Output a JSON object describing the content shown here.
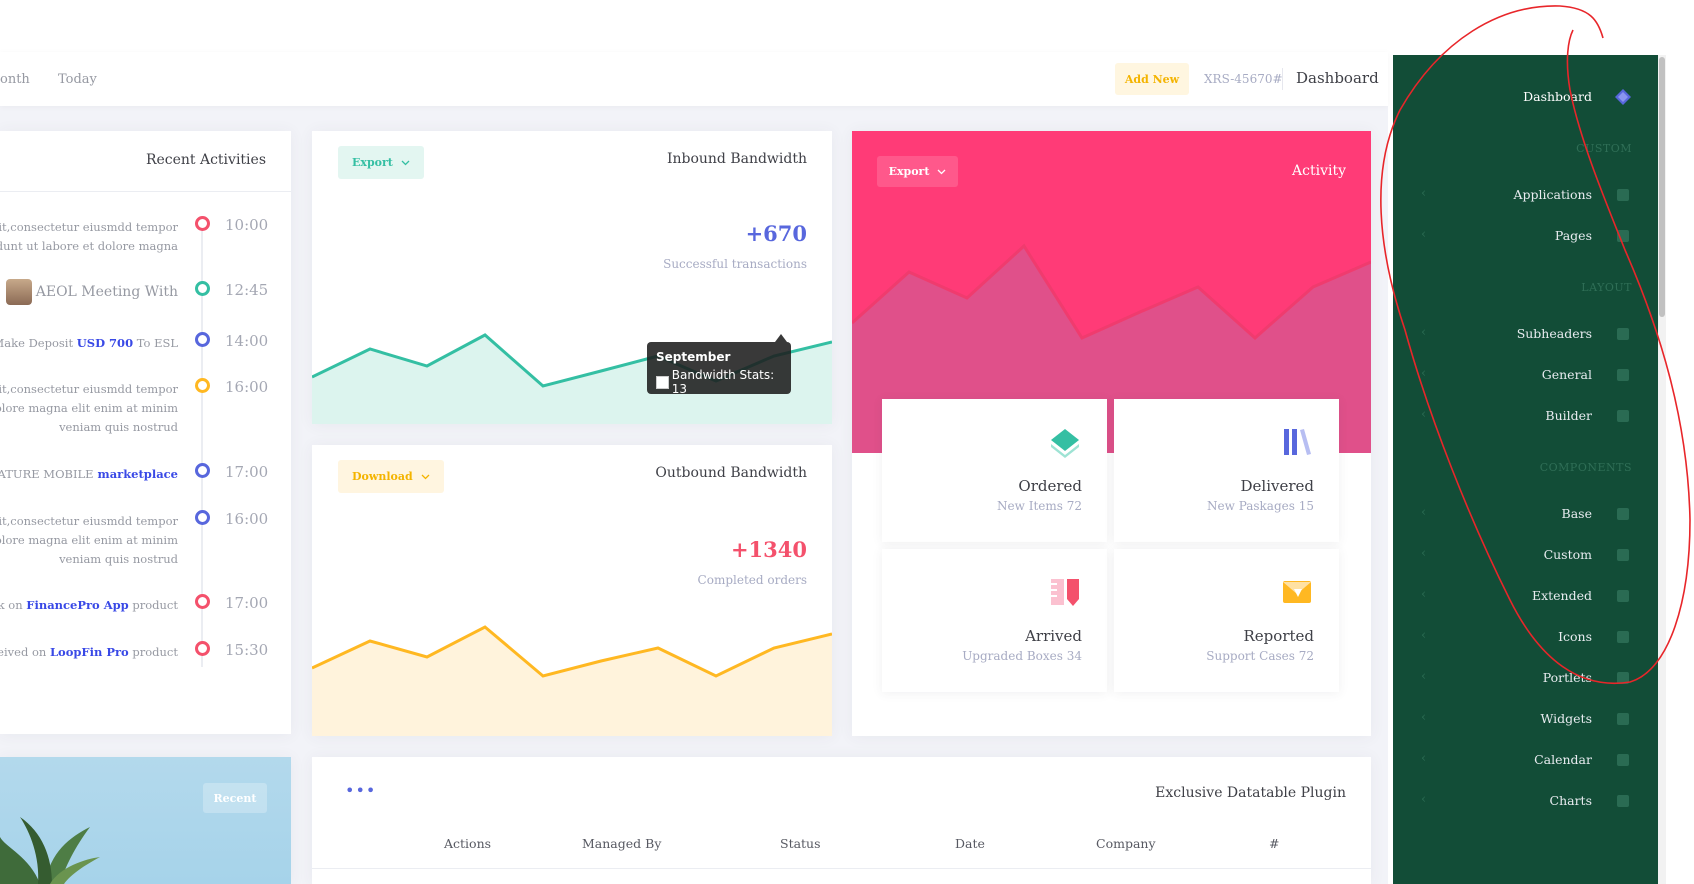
{
  "subheader": {
    "links": [
      "onth",
      "Today"
    ],
    "add_new": "Add New",
    "order_code": "XRS-45670#",
    "title": "Dashboard"
  },
  "activities": {
    "title": "Recent Activities",
    "items": [
      {
        "lines": [
          "amit,consectetur eiusmdd tempor",
          "incididunt ut labore et dolore magna"
        ],
        "time": "10:00",
        "color": "#f4516c"
      },
      {
        "lines": [
          "AEOL Meeting With"
        ],
        "time": "12:45",
        "color": "#34bfa3",
        "avatar": true
      },
      {
        "lines_html": [
          "Make Deposit ",
          "USD 700",
          " To ESL"
        ],
        "time": "14:00",
        "color": "#5867dd"
      },
      {
        "lines": [
          "amit,consectetur eiusmdd tempor",
          "et dolore magna elit enim at minim",
          "veniam quis nostrud"
        ],
        "time": "16:00",
        "color": "#ffb822"
      },
      {
        "lines_html": [
          "IGNATURE MOBILE",
          " marketplace"
        ],
        "time": "17:00",
        "color": "#5867dd"
      },
      {
        "lines": [
          "amit,consectetur eiusmdd tempor",
          "et dolore magna elit enim at minim",
          "veniam quis nostrud"
        ],
        "time": "16:00",
        "color": "#5867dd"
      },
      {
        "lines_html": [
          "dback on ",
          "FinancePro App",
          " product"
        ],
        "time": "17:00",
        "color": "#f4516c"
      },
      {
        "lines_html": [
          "received on ",
          "LoopFin Pro",
          " product"
        ],
        "time": "15:30",
        "color": "#f4516c"
      }
    ]
  },
  "inbound": {
    "title": "Inbound Bandwidth",
    "button": "Export",
    "value": "+670",
    "label": "Successful transactions",
    "color": "#5867dd",
    "line_color": "#34bfa3",
    "fill_color": "#dcf4ee",
    "tooltip_title": "September",
    "tooltip_text": "Bandwidth Stats: 13"
  },
  "outbound": {
    "title": "Outbound Bandwidth",
    "button": "Download",
    "value": "+1340",
    "label": "Completed orders",
    "color": "#f4516c",
    "line_color": "#ffb822",
    "fill_color": "#fff3dc"
  },
  "activity": {
    "title": "Activity",
    "button": "Export",
    "stats": [
      {
        "title": "Ordered",
        "sub": "New Items 72"
      },
      {
        "title": "Delivered",
        "sub": "New Paskages 15"
      },
      {
        "title": "Arrived",
        "sub": "Upgraded Boxes 34"
      },
      {
        "title": "Reported",
        "sub": "Support Cases 72"
      }
    ]
  },
  "recent": {
    "button": "Recent"
  },
  "datatable": {
    "title": "Exclusive Datatable Plugin",
    "menu": "•••",
    "columns": [
      "Actions",
      "Managed By",
      "Status",
      "Date",
      "Company",
      "#"
    ]
  },
  "sidebar": {
    "items": [
      {
        "label": "Dashboard",
        "icon": "diamond-icon",
        "active": true
      },
      {
        "section": "CUSTOM"
      },
      {
        "label": "Applications",
        "icon": "app-icon"
      },
      {
        "label": "Pages",
        "icon": "pages-icon"
      },
      {
        "section": "LAYOUT"
      },
      {
        "label": "Subheaders",
        "icon": "subheaders-icon"
      },
      {
        "label": "General",
        "icon": "toggle-icon"
      },
      {
        "label": "Builder",
        "icon": "builder-icon"
      },
      {
        "section": "COMPONENTS"
      },
      {
        "label": "Base",
        "icon": "cube-icon"
      },
      {
        "label": "Custom",
        "icon": "image-icon"
      },
      {
        "label": "Extended",
        "icon": "extended-icon"
      },
      {
        "label": "Icons",
        "icon": "icons-icon"
      },
      {
        "label": "Portlets",
        "icon": "portlets-icon"
      },
      {
        "label": "Widgets",
        "icon": "widgets-icon"
      },
      {
        "label": "Calendar",
        "icon": "calendar-icon"
      },
      {
        "label": "Charts",
        "icon": "chart-icon"
      }
    ]
  }
}
